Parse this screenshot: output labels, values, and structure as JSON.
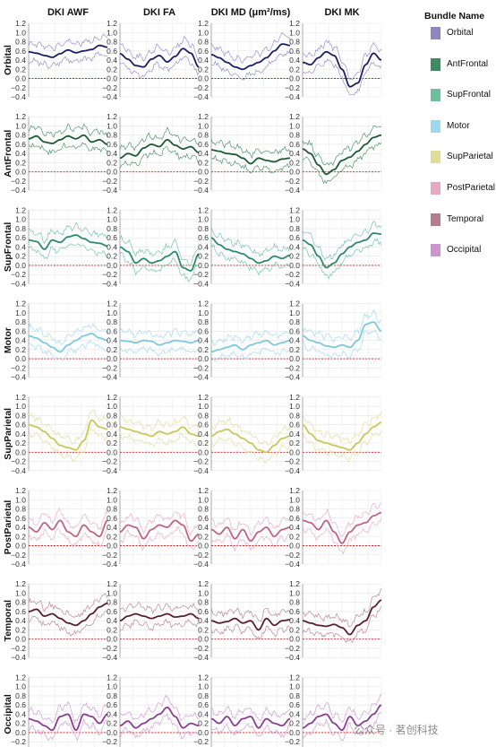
{
  "chart_data": {
    "type": "line",
    "columns": [
      "DKI AWF",
      "DKI FA",
      "DKI MD (μm²/ms)",
      "DKI MK"
    ],
    "rows": [
      "Orbital",
      "AntFrontal",
      "SupFrontal",
      "Motor",
      "SupParietal",
      "PostParietal",
      "Temporal",
      "Occipital"
    ],
    "yticks": [
      "1.2",
      "1.0",
      "0.8",
      "0.6",
      "0.4",
      "0.2",
      "0.0",
      "−0.2",
      "−0.4"
    ],
    "ylim": [
      -0.4,
      1.2
    ],
    "grid": true,
    "zero_line": "dashed red",
    "legend": {
      "title": "Bundle Name",
      "placement": "right",
      "items": [
        {
          "name": "Orbital",
          "color": "#8f85c2"
        },
        {
          "name": "AntFrontal",
          "color": "#3f8a60"
        },
        {
          "name": "SupFrontal",
          "color": "#6cbf9f"
        },
        {
          "name": "Motor",
          "color": "#9ed7ee"
        },
        {
          "name": "SupParietal",
          "color": "#dedd9a"
        },
        {
          "name": "PostParietal",
          "color": "#e7a9bf"
        },
        {
          "name": "Temporal",
          "color": "#b67c90"
        },
        {
          "name": "Occipital",
          "color": "#cc95cf"
        }
      ]
    },
    "line_colors": [
      "#1c1f63",
      "#1e5a35",
      "#2e8a6a",
      "#7cc8e0",
      "#c8c85a",
      "#c06483",
      "#5a1e33",
      "#8a3d92"
    ],
    "series": [
      [
        {
          "x": [
            0,
            0.1,
            0.2,
            0.3,
            0.4,
            0.5,
            0.6,
            0.7,
            0.8,
            0.9,
            1
          ],
          "y": [
            0.58,
            0.55,
            0.5,
            0.46,
            0.54,
            0.62,
            0.56,
            0.6,
            0.63,
            0.72,
            0.68
          ]
        },
        {
          "x": [
            0,
            0.1,
            0.2,
            0.3,
            0.4,
            0.5,
            0.6,
            0.7,
            0.8,
            0.9,
            1
          ],
          "y": [
            0.54,
            0.42,
            0.28,
            0.25,
            0.42,
            0.5,
            0.36,
            0.48,
            0.65,
            0.55,
            0.25
          ]
        },
        {
          "x": [
            0,
            0.1,
            0.2,
            0.3,
            0.4,
            0.5,
            0.6,
            0.7,
            0.8,
            0.9,
            1
          ],
          "y": [
            0.52,
            0.45,
            0.35,
            0.25,
            0.2,
            0.28,
            0.35,
            0.45,
            0.6,
            0.75,
            0.72
          ]
        },
        {
          "x": [
            0,
            0.1,
            0.2,
            0.3,
            0.4,
            0.5,
            0.6,
            0.7,
            0.8,
            0.9,
            1
          ],
          "y": [
            0.35,
            0.3,
            0.45,
            0.58,
            0.5,
            0.2,
            -0.18,
            -0.1,
            0.3,
            0.55,
            0.4
          ]
        }
      ],
      [
        {
          "x": [
            0,
            0.1,
            0.2,
            0.3,
            0.4,
            0.5,
            0.6,
            0.7,
            0.8,
            0.9,
            1
          ],
          "y": [
            0.72,
            0.78,
            0.65,
            0.62,
            0.7,
            0.78,
            0.72,
            0.8,
            0.65,
            0.7,
            0.6
          ]
        },
        {
          "x": [
            0,
            0.1,
            0.2,
            0.3,
            0.4,
            0.5,
            0.6,
            0.7,
            0.8,
            0.9,
            1
          ],
          "y": [
            0.3,
            0.4,
            0.35,
            0.52,
            0.6,
            0.55,
            0.7,
            0.58,
            0.5,
            0.55,
            0.42
          ]
        },
        {
          "x": [
            0,
            0.1,
            0.2,
            0.3,
            0.4,
            0.5,
            0.6,
            0.7,
            0.8,
            0.9,
            1
          ],
          "y": [
            0.48,
            0.45,
            0.4,
            0.38,
            0.3,
            0.18,
            0.3,
            0.25,
            0.22,
            0.28,
            0.3
          ]
        },
        {
          "x": [
            0,
            0.1,
            0.2,
            0.3,
            0.4,
            0.5,
            0.6,
            0.7,
            0.8,
            0.9,
            1
          ],
          "y": [
            0.5,
            0.4,
            0.15,
            -0.05,
            0.05,
            0.25,
            0.32,
            0.45,
            0.6,
            0.75,
            0.8
          ]
        }
      ],
      [
        {
          "x": [
            0,
            0.1,
            0.2,
            0.3,
            0.4,
            0.5,
            0.6,
            0.7,
            0.8,
            0.9,
            1
          ],
          "y": [
            0.55,
            0.52,
            0.35,
            0.55,
            0.5,
            0.62,
            0.66,
            0.58,
            0.5,
            0.48,
            0.42
          ]
        },
        {
          "x": [
            0,
            0.1,
            0.2,
            0.3,
            0.4,
            0.5,
            0.6,
            0.7,
            0.8,
            0.9,
            1
          ],
          "y": [
            0.4,
            0.3,
            0.05,
            0.15,
            0.05,
            0.1,
            0.2,
            0.3,
            -0.05,
            -0.12,
            0.25
          ]
        },
        {
          "x": [
            0,
            0.1,
            0.2,
            0.3,
            0.4,
            0.5,
            0.6,
            0.7,
            0.8,
            0.9,
            1
          ],
          "y": [
            0.6,
            0.45,
            0.35,
            0.3,
            0.25,
            0.15,
            0.05,
            0.1,
            0.2,
            0.15,
            0.22
          ]
        },
        {
          "x": [
            0,
            0.1,
            0.2,
            0.3,
            0.4,
            0.5,
            0.6,
            0.7,
            0.8,
            0.9,
            1
          ],
          "y": [
            0.55,
            0.45,
            0.2,
            -0.05,
            0.05,
            0.25,
            0.4,
            0.5,
            0.55,
            0.7,
            0.68
          ]
        }
      ],
      [
        {
          "x": [
            0,
            0.1,
            0.2,
            0.3,
            0.4,
            0.5,
            0.6,
            0.7,
            0.8,
            0.9,
            1
          ],
          "y": [
            0.5,
            0.45,
            0.35,
            0.25,
            0.15,
            0.3,
            0.4,
            0.5,
            0.55,
            0.45,
            0.4
          ]
        },
        {
          "x": [
            0,
            0.1,
            0.2,
            0.3,
            0.4,
            0.5,
            0.6,
            0.7,
            0.8,
            0.9,
            1
          ],
          "y": [
            0.4,
            0.38,
            0.35,
            0.4,
            0.38,
            0.3,
            0.35,
            0.4,
            0.38,
            0.35,
            0.4
          ]
        },
        {
          "x": [
            0,
            0.1,
            0.2,
            0.3,
            0.4,
            0.5,
            0.6,
            0.7,
            0.8,
            0.9,
            1
          ],
          "y": [
            0.15,
            0.2,
            0.25,
            0.3,
            0.2,
            0.3,
            0.35,
            0.4,
            0.3,
            0.35,
            0.4
          ]
        },
        {
          "x": [
            0,
            0.1,
            0.2,
            0.3,
            0.4,
            0.5,
            0.6,
            0.7,
            0.8,
            0.9,
            1
          ],
          "y": [
            0.5,
            0.4,
            0.35,
            0.28,
            0.25,
            0.3,
            0.25,
            0.4,
            0.75,
            0.8,
            0.6
          ]
        }
      ],
      [
        {
          "x": [
            0,
            0.1,
            0.2,
            0.3,
            0.4,
            0.5,
            0.6,
            0.7,
            0.8,
            0.9,
            1
          ],
          "y": [
            0.6,
            0.55,
            0.45,
            0.3,
            0.15,
            0.1,
            0.05,
            0.25,
            0.7,
            0.55,
            0.5
          ]
        },
        {
          "x": [
            0,
            0.1,
            0.2,
            0.3,
            0.4,
            0.5,
            0.6,
            0.7,
            0.8,
            0.9,
            1
          ],
          "y": [
            0.55,
            0.5,
            0.45,
            0.4,
            0.35,
            0.45,
            0.4,
            0.45,
            0.55,
            0.4,
            0.35
          ]
        },
        {
          "x": [
            0,
            0.1,
            0.2,
            0.3,
            0.4,
            0.5,
            0.6,
            0.7,
            0.8,
            0.9,
            1
          ],
          "y": [
            0.35,
            0.45,
            0.5,
            0.4,
            0.3,
            0.2,
            0.05,
            0.0,
            0.15,
            0.3,
            0.35
          ]
        },
        {
          "x": [
            0,
            0.1,
            0.2,
            0.3,
            0.4,
            0.5,
            0.6,
            0.7,
            0.8,
            0.9,
            1
          ],
          "y": [
            0.6,
            0.4,
            0.25,
            0.2,
            0.15,
            0.1,
            0.05,
            0.2,
            0.4,
            0.55,
            0.65
          ]
        }
      ],
      [
        {
          "x": [
            0,
            0.1,
            0.2,
            0.3,
            0.4,
            0.5,
            0.6,
            0.7,
            0.8,
            0.9,
            1
          ],
          "y": [
            0.4,
            0.3,
            0.5,
            0.35,
            0.55,
            0.3,
            0.2,
            0.45,
            0.3,
            0.2,
            0.55
          ]
        },
        {
          "x": [
            0,
            0.1,
            0.2,
            0.3,
            0.4,
            0.5,
            0.6,
            0.7,
            0.8,
            0.9,
            1
          ],
          "y": [
            0.3,
            0.45,
            0.4,
            0.15,
            0.35,
            0.45,
            0.4,
            0.55,
            0.45,
            0.1,
            0.25
          ]
        },
        {
          "x": [
            0,
            0.1,
            0.2,
            0.3,
            0.4,
            0.5,
            0.6,
            0.7,
            0.8,
            0.9,
            1
          ],
          "y": [
            0.35,
            0.25,
            0.4,
            0.15,
            0.35,
            0.1,
            0.3,
            0.4,
            0.2,
            0.35,
            0.4
          ]
        },
        {
          "x": [
            0,
            0.1,
            0.2,
            0.3,
            0.4,
            0.5,
            0.6,
            0.7,
            0.8,
            0.9,
            1
          ],
          "y": [
            0.55,
            0.5,
            0.35,
            0.55,
            0.3,
            0.05,
            0.3,
            0.45,
            0.5,
            0.65,
            0.72
          ]
        }
      ],
      [
        {
          "x": [
            0,
            0.1,
            0.2,
            0.3,
            0.4,
            0.5,
            0.6,
            0.7,
            0.8,
            0.9,
            1
          ],
          "y": [
            0.6,
            0.65,
            0.5,
            0.55,
            0.45,
            0.35,
            0.3,
            0.4,
            0.55,
            0.7,
            0.78
          ]
        },
        {
          "x": [
            0,
            0.1,
            0.2,
            0.3,
            0.4,
            0.5,
            0.6,
            0.7,
            0.8,
            0.9,
            1
          ],
          "y": [
            0.4,
            0.5,
            0.55,
            0.5,
            0.45,
            0.5,
            0.55,
            0.48,
            0.5,
            0.55,
            0.45
          ]
        },
        {
          "x": [
            0,
            0.1,
            0.2,
            0.3,
            0.4,
            0.5,
            0.6,
            0.7,
            0.8,
            0.9,
            1
          ],
          "y": [
            0.4,
            0.35,
            0.38,
            0.45,
            0.35,
            0.4,
            0.2,
            0.45,
            0.3,
            0.4,
            0.42
          ]
        },
        {
          "x": [
            0,
            0.1,
            0.2,
            0.3,
            0.4,
            0.5,
            0.6,
            0.7,
            0.8,
            0.9,
            1
          ],
          "y": [
            0.4,
            0.35,
            0.3,
            0.28,
            0.32,
            0.25,
            0.1,
            0.3,
            0.4,
            0.7,
            0.85
          ]
        }
      ],
      [
        {
          "x": [
            0,
            0.1,
            0.2,
            0.3,
            0.4,
            0.5,
            0.6,
            0.7,
            0.8,
            0.9,
            1
          ],
          "y": [
            0.3,
            0.25,
            0.15,
            0.05,
            0.35,
            0.4,
            0.05,
            0.4,
            0.35,
            0.2,
            0.4
          ]
        },
        {
          "x": [
            0,
            0.1,
            0.2,
            0.3,
            0.4,
            0.5,
            0.6,
            0.7,
            0.8,
            0.9,
            1
          ],
          "y": [
            0.15,
            0.25,
            0.1,
            0.2,
            0.3,
            0.4,
            0.55,
            0.35,
            0.1,
            0.2,
            0.15
          ]
        },
        {
          "x": [
            0,
            0.1,
            0.2,
            0.3,
            0.4,
            0.5,
            0.6,
            0.7,
            0.8,
            0.9,
            1
          ],
          "y": [
            0.3,
            0.2,
            0.35,
            0.15,
            0.3,
            0.35,
            0.1,
            0.3,
            0.2,
            0.15,
            0.3
          ]
        },
        {
          "x": [
            0,
            0.1,
            0.2,
            0.3,
            0.4,
            0.5,
            0.6,
            0.7,
            0.8,
            0.9,
            1
          ],
          "y": [
            0.1,
            0.2,
            0.35,
            0.4,
            0.2,
            0.05,
            0.35,
            0.15,
            0.25,
            0.4,
            0.6
          ]
        }
      ]
    ]
  },
  "watermark": "公众号 · 茗创科技"
}
